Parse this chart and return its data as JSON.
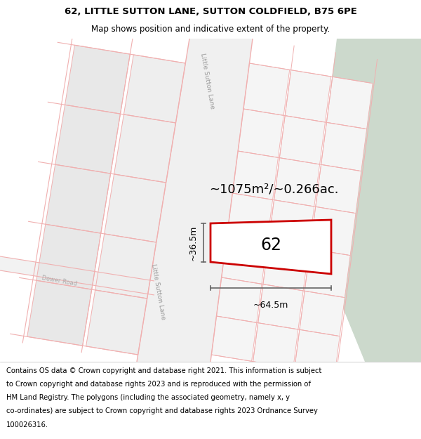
{
  "title_line1": "62, LITTLE SUTTON LANE, SUTTON COLDFIELD, B75 6PE",
  "title_line2": "Map shows position and indicative extent of the property.",
  "footer_lines": [
    "Contains OS data © Crown copyright and database right 2021. This information is subject",
    "to Crown copyright and database rights 2023 and is reproduced with the permission of",
    "HM Land Registry. The polygons (including the associated geometry, namely x, y",
    "co-ordinates) are subject to Crown copyright and database rights 2023 Ordnance Survey",
    "100026316."
  ],
  "area_label": "~1075m²/~0.266ac.",
  "property_number": "62",
  "width_label": "~64.5m",
  "height_label": "~36.5m",
  "road_label_top": "Little Sutton Lane",
  "road_label_mid": "Little Sutton Lane",
  "road_label_dower": "Dower Road",
  "map_bg": "#f7f7f7",
  "green_color": "#ccd9cc",
  "road_line_color": "#f0b0b0",
  "plot_line_color": "#f0b0b0",
  "dim_line_color": "#666666",
  "property_color": "#cc0000",
  "building_fill": "#e8e8e8",
  "building_edge": "#f0b0b0"
}
